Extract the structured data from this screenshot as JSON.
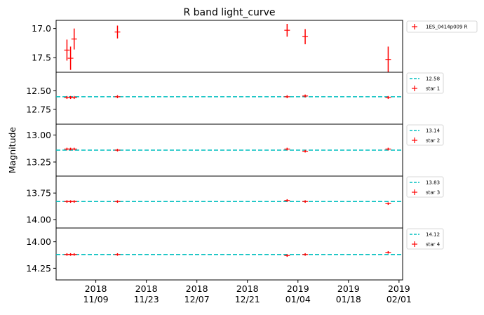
{
  "chart_data": {
    "type": "scatter",
    "title": "R band light_curve",
    "ylabel": "Magnitude",
    "x_tick_labels": [
      [
        "2018",
        "11/09"
      ],
      [
        "2018",
        "11/23"
      ],
      [
        "2018",
        "12/07"
      ],
      [
        "2018",
        "12/21"
      ],
      [
        "2019",
        "01/04"
      ],
      [
        "2019",
        "01/18"
      ],
      [
        "2019",
        "02/01"
      ]
    ],
    "x_tick_dates": [
      "2018-11-09",
      "2018-11-23",
      "2018-12-07",
      "2018-12-21",
      "2019-01-04",
      "2019-01-18",
      "2019-02-01"
    ],
    "xlim": [
      "2018-10-29",
      "2019-02-02"
    ],
    "x": [
      "2018-11-01",
      "2018-11-02",
      "2018-11-03",
      "2018-11-15",
      "2019-01-01",
      "2019-01-06",
      "2019-01-29"
    ],
    "colors": {
      "points": "#ff0000",
      "reference_line": "#00bfbf",
      "frame": "#000000"
    },
    "panels": [
      {
        "name": "1ES_0414p009 R",
        "y_inverted": true,
        "ylim": [
          17.75,
          16.86
        ],
        "yticks": [
          "17.0",
          "17.5"
        ],
        "ytick_values": [
          17.0,
          17.5
        ],
        "values": [
          17.37,
          17.51,
          17.18,
          17.06,
          17.03,
          17.14,
          17.53
        ],
        "errors": [
          0.18,
          0.2,
          0.18,
          0.11,
          0.11,
          0.13,
          0.22
        ]
      },
      {
        "name": "star 1",
        "reference": {
          "label": "12.58",
          "value": 12.58
        },
        "y_inverted": true,
        "ylim": [
          12.95,
          12.25
        ],
        "yticks": [
          "12.50",
          "12.75"
        ],
        "ytick_values": [
          12.5,
          12.75
        ],
        "values": [
          12.59,
          12.59,
          12.59,
          12.58,
          12.58,
          12.57,
          12.59
        ],
        "errors": [
          0.02,
          0.02,
          0.02,
          0.02,
          0.02,
          0.02,
          0.02
        ]
      },
      {
        "name": "star 2",
        "reference": {
          "label": "13.14",
          "value": 13.14
        },
        "y_inverted": true,
        "ylim": [
          13.38,
          12.9
        ],
        "yticks": [
          "13.00",
          "13.25"
        ],
        "ytick_values": [
          13.0,
          13.25
        ],
        "values": [
          13.13,
          13.13,
          13.13,
          13.14,
          13.13,
          13.15,
          13.13
        ],
        "errors": [
          0.012,
          0.012,
          0.012,
          0.012,
          0.012,
          0.012,
          0.012
        ]
      },
      {
        "name": "star 3",
        "reference": {
          "label": "13.83",
          "value": 13.83
        },
        "y_inverted": true,
        "ylim": [
          14.08,
          13.59
        ],
        "yticks": [
          "13.75",
          "14.00"
        ],
        "ytick_values": [
          13.75,
          14.0
        ],
        "values": [
          13.83,
          13.83,
          13.83,
          13.83,
          13.82,
          13.83,
          13.85
        ],
        "errors": [
          0.012,
          0.012,
          0.012,
          0.012,
          0.012,
          0.012,
          0.012
        ]
      },
      {
        "name": "star 4",
        "reference": {
          "label": "14.12",
          "value": 14.12
        },
        "y_inverted": true,
        "ylim": [
          14.36,
          13.87
        ],
        "yticks": [
          "14.00",
          "14.25"
        ],
        "ytick_values": [
          14.0,
          14.25
        ],
        "values": [
          14.12,
          14.12,
          14.12,
          14.12,
          14.13,
          14.12,
          14.1
        ],
        "errors": [
          0.012,
          0.012,
          0.012,
          0.012,
          0.012,
          0.012,
          0.012
        ]
      }
    ]
  }
}
